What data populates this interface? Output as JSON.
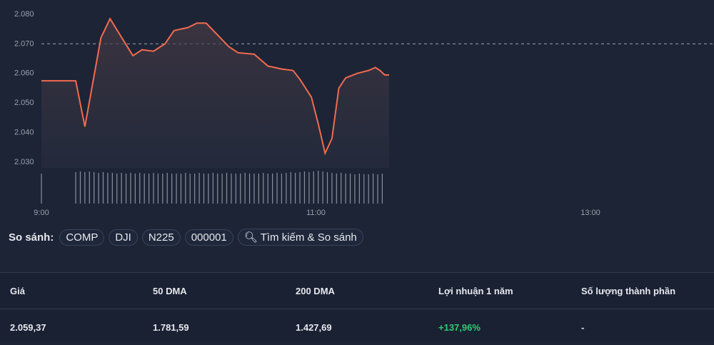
{
  "chart_data": {
    "type": "line",
    "color": "#f26b4f",
    "x": [
      540,
      555,
      559,
      566,
      570,
      580,
      584,
      589,
      594,
      598,
      604,
      608,
      612,
      617,
      622,
      626,
      633,
      639,
      645,
      650,
      653,
      658,
      661,
      664,
      667,
      670,
      673,
      678,
      683,
      686,
      688,
      690,
      692
    ],
    "values": [
      2057.5,
      2057.5,
      2042,
      2072,
      2078.5,
      2066,
      2068,
      2067.5,
      2070,
      2074.5,
      2075.5,
      2077,
      2077,
      2073,
      2069,
      2067,
      2066.5,
      2062.5,
      2061.5,
      2061,
      2058,
      2052,
      2043,
      2033,
      2038,
      2055,
      2058.5,
      2060,
      2061,
      2062,
      2061,
      2059.5,
      2059.5
    ],
    "xlim": [
      540,
      834
    ],
    "xticks": [
      {
        "value": 540,
        "label": "9:00"
      },
      {
        "value": 660,
        "label": "11:00"
      },
      {
        "value": 780,
        "label": "13:00"
      }
    ],
    "ylim": [
      2028,
      2082
    ],
    "yticks": [
      {
        "value": 2030,
        "label": "2.030"
      },
      {
        "value": 2040,
        "label": "2.040"
      },
      {
        "value": 2050,
        "label": "2.050"
      },
      {
        "value": 2060,
        "label": "2.060"
      },
      {
        "value": 2070,
        "label": "2.070"
      },
      {
        "value": 2080,
        "label": "2.080"
      }
    ],
    "reference_line": 2070,
    "grid": false,
    "volume": {
      "color": "#8a909c",
      "ylim": [
        0,
        50
      ],
      "x": [
        540,
        555,
        557,
        559,
        561,
        563,
        565,
        567,
        569,
        571,
        573,
        575,
        577,
        579,
        581,
        583,
        585,
        587,
        589,
        591,
        593,
        595,
        597,
        599,
        601,
        603,
        605,
        607,
        609,
        611,
        613,
        615,
        617,
        619,
        621,
        623,
        625,
        627,
        629,
        631,
        633,
        635,
        637,
        639,
        641,
        643,
        645,
        647,
        649,
        651,
        653,
        655,
        657,
        659,
        661,
        663,
        665,
        667,
        669,
        671,
        673,
        675,
        677,
        679,
        681,
        683,
        685,
        687,
        689
      ],
      "values": [
        42,
        44,
        45,
        44,
        45,
        44,
        43,
        44,
        43,
        43,
        42,
        43,
        42,
        43,
        42,
        43,
        42,
        42,
        43,
        42,
        42,
        43,
        42,
        42,
        42,
        43,
        42,
        42,
        43,
        42,
        42,
        43,
        42,
        42,
        43,
        42,
        42,
        42,
        43,
        42,
        42,
        42,
        43,
        42,
        42,
        43,
        42,
        43,
        44,
        43,
        44,
        45,
        44,
        45,
        46,
        45,
        44,
        43,
        42,
        43,
        42,
        42,
        41,
        42,
        41,
        41,
        42,
        41,
        42
      ]
    }
  },
  "compare": {
    "label": "So sánh:",
    "items": [
      "COMP",
      "DJI",
      "N225",
      "000001"
    ],
    "search": "Tìm kiếm & So sánh"
  },
  "table": {
    "headers": [
      "Giá",
      "50 DMA",
      "200 DMA",
      "Lợi nhuận 1 năm",
      "Số lượng thành phần"
    ],
    "values": [
      "2.059,37",
      "1.781,59",
      "1.427,69",
      "+137,96%",
      "-"
    ]
  }
}
